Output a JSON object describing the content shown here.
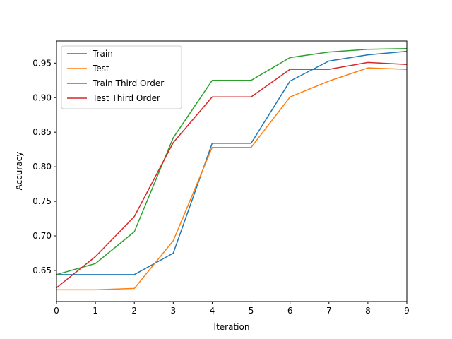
{
  "chart_data": {
    "type": "line",
    "xlabel": "Iteration",
    "ylabel": "Accuracy",
    "x": [
      0,
      1,
      2,
      3,
      4,
      5,
      6,
      7,
      8,
      9
    ],
    "xlim": [
      0,
      9
    ],
    "ylim": [
      0.605,
      0.982
    ],
    "x_ticks": [
      "0",
      "1",
      "2",
      "3",
      "4",
      "5",
      "6",
      "7",
      "8",
      "9"
    ],
    "y_ticks": [
      "0.65",
      "0.70",
      "0.75",
      "0.80",
      "0.85",
      "0.90",
      "0.95"
    ],
    "grid": false,
    "legend_position": "upper-left",
    "series": [
      {
        "name": "Train",
        "color": "#1f77b4",
        "values": [
          0.644,
          0.644,
          0.644,
          0.675,
          0.834,
          0.834,
          0.924,
          0.953,
          0.962,
          0.967
        ]
      },
      {
        "name": "Test",
        "color": "#ff7f0e",
        "values": [
          0.622,
          0.622,
          0.624,
          0.693,
          0.828,
          0.828,
          0.901,
          0.924,
          0.943,
          0.941
        ]
      },
      {
        "name": "Train Third Order",
        "color": "#2ca02c",
        "values": [
          0.644,
          0.66,
          0.706,
          0.842,
          0.925,
          0.925,
          0.958,
          0.966,
          0.97,
          0.971
        ]
      },
      {
        "name": "Test Third Order",
        "color": "#d62728",
        "values": [
          0.625,
          0.67,
          0.728,
          0.835,
          0.901,
          0.901,
          0.941,
          0.941,
          0.951,
          0.948
        ]
      }
    ]
  }
}
